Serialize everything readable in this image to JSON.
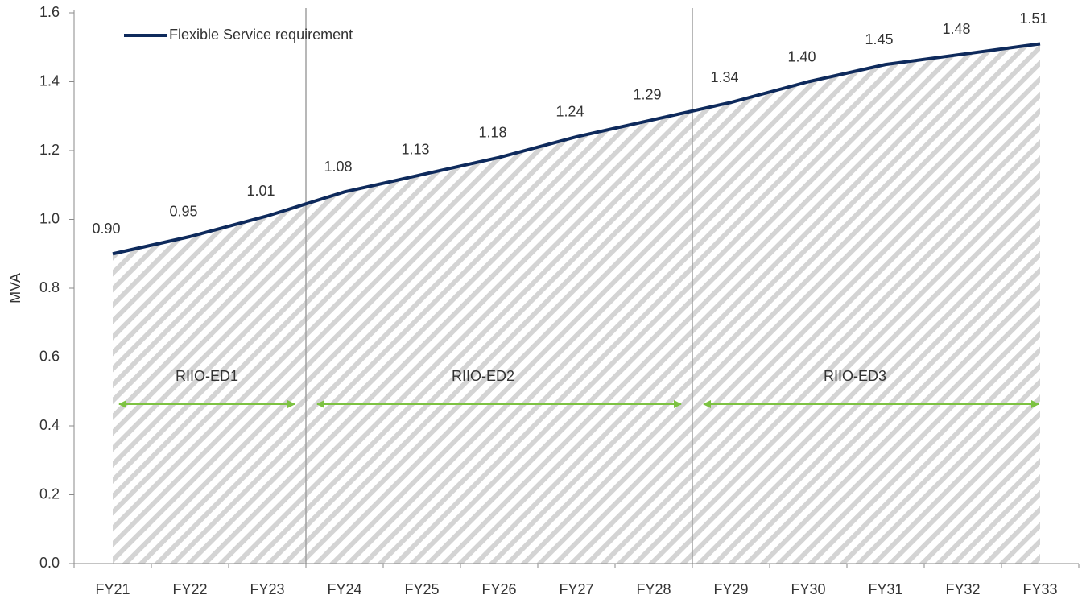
{
  "chart_data": {
    "type": "line",
    "y_label": "MVA",
    "categories": [
      "FY21",
      "FY22",
      "FY23",
      "FY24",
      "FY25",
      "FY26",
      "FY27",
      "FY28",
      "FY29",
      "FY30",
      "FY31",
      "FY32",
      "FY33"
    ],
    "series": [
      {
        "name": "Flexible Service requirement",
        "color": "#0e2a5c",
        "values": [
          0.9,
          0.95,
          1.01,
          1.08,
          1.13,
          1.18,
          1.24,
          1.29,
          1.34,
          1.4,
          1.45,
          1.48,
          1.51
        ],
        "value_labels": [
          "0.90",
          "0.95",
          "1.01",
          "1.08",
          "1.13",
          "1.18",
          "1.24",
          "1.29",
          "1.34",
          "1.40",
          "1.45",
          "1.48",
          "1.51"
        ]
      }
    ],
    "ylim": [
      0,
      1.6
    ],
    "yticks": [
      {
        "value": 0,
        "label": "0.0"
      },
      0.2,
      0.4,
      0.6,
      0.8,
      {
        "value": 1,
        "label": "1.0"
      },
      1.2,
      1.4,
      1.6
    ],
    "area_fill": "hatched",
    "periods": [
      {
        "label": "RIIO-ED1",
        "start": "FY21",
        "end": "FY23"
      },
      {
        "label": "RIIO-ED2",
        "start": "FY24",
        "end": "FY28"
      },
      {
        "label": "RIIO-ED3",
        "start": "FY29",
        "end": "FY33"
      }
    ],
    "period_color": "#7dc242",
    "legend": "top-left"
  }
}
